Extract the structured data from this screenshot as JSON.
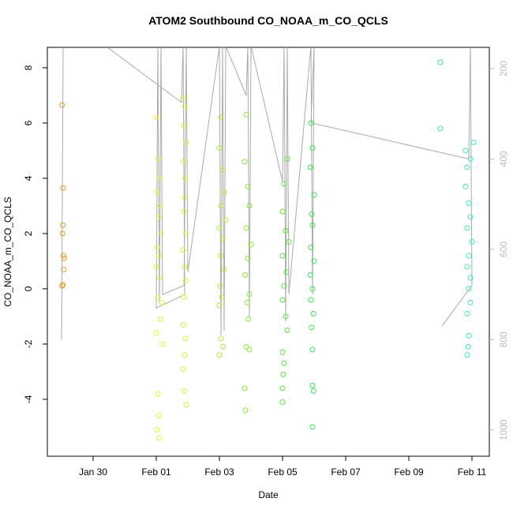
{
  "chart_data": {
    "type": "scatter",
    "title": "ATOM2 Southbound CO_NOAA_m_CO_QCLS",
    "x_label": "Date",
    "y_label": "CO_NOAA_m_CO_QCLS",
    "xlim": [
      28.55,
      42.55
    ],
    "xticks": [
      {
        "value": 30,
        "label": "Jan 30"
      },
      {
        "value": 32,
        "label": "Feb 01"
      },
      {
        "value": 34,
        "label": "Feb 03"
      },
      {
        "value": 36,
        "label": "Feb 05"
      },
      {
        "value": 38,
        "label": "Feb 07"
      },
      {
        "value": 40,
        "label": "Feb 09"
      },
      {
        "value": 42,
        "label": "Feb 11"
      }
    ],
    "ylim": [
      -6.06,
      8.74
    ],
    "yticks": [
      -4,
      -2,
      0,
      2,
      4,
      6,
      8
    ],
    "y2lim": [
      1058,
      153
    ],
    "y2ticks": [
      200,
      400,
      600,
      800,
      1000
    ],
    "series": [
      {
        "color": "#aaaaaa",
        "axis": "y2",
        "line": true,
        "x": [
          29.0,
          29.05,
          30.4,
          32.8,
          32.85,
          32.9,
          32.0,
          32.05,
          32.1,
          32.15,
          32.2,
          32.88,
          32.95,
          33.0,
          34.0,
          34.05,
          34.1,
          34.15,
          34.2,
          34.85,
          34.9,
          34.95,
          35.0,
          36.0,
          36.05,
          36.1,
          36.15,
          36.2,
          36.9,
          36.95,
          37.0,
          36.9,
          41.9,
          41.95,
          42.0,
          41.05
        ],
        "values": [
          800,
          150,
          150,
          275,
          150,
          700,
          730,
          150,
          720,
          150,
          700,
          680,
          150,
          650,
          150,
          790,
          150,
          780,
          150,
          260,
          150,
          750,
          150,
          450,
          150,
          760,
          150,
          700,
          150,
          700,
          150,
          320,
          400,
          150,
          680,
          770
        ]
      },
      {
        "color": "#ee9922",
        "x": [
          29.02,
          29.05,
          29.04,
          29.03,
          29.06,
          29.08,
          29.07,
          29.04,
          29.02
        ],
        "values": [
          6.65,
          3.65,
          2.3,
          2.0,
          1.2,
          1.1,
          0.7,
          0.15,
          0.1
        ]
      },
      {
        "color": "#e6f530",
        "x": [
          32.0,
          32.05,
          32.1,
          32.02,
          32.12,
          32.07,
          32.15,
          32.03,
          32.08,
          32.0,
          32.1,
          32.05,
          32.18,
          32.13,
          32.0,
          32.2,
          32.05,
          32.08,
          32.02,
          32.1
        ],
        "values": [
          6.2,
          4.7,
          4.0,
          3.5,
          3.0,
          2.6,
          2.0,
          1.5,
          1.2,
          0.8,
          0.4,
          -0.3,
          -0.5,
          -1.1,
          -1.6,
          -2.0,
          -3.8,
          -4.6,
          -5.1,
          -5.4
        ]
      },
      {
        "color": "#d8f530",
        "x": [
          32.85,
          32.9,
          32.88,
          32.95,
          32.86,
          32.92,
          32.9,
          32.87,
          32.94,
          32.85,
          32.9,
          32.93,
          32.88,
          32.86,
          32.92,
          32.9,
          32.85,
          32.88,
          32.95
        ],
        "values": [
          6.9,
          6.6,
          5.9,
          5.3,
          4.6,
          4.0,
          3.3,
          2.8,
          2.0,
          1.4,
          0.8,
          0.3,
          -0.3,
          -1.3,
          -1.8,
          -2.4,
          -2.9,
          -3.7,
          -4.2
        ]
      },
      {
        "color": "#aaf030",
        "x": [
          34.05,
          34.0,
          34.1,
          34.15,
          34.05,
          34.2,
          34.0,
          34.1,
          34.05,
          34.15,
          34.02,
          34.08,
          34.0,
          34.05,
          34.12,
          34.0
        ],
        "values": [
          6.2,
          5.1,
          4.3,
          3.5,
          3.0,
          2.5,
          2.2,
          1.8,
          1.2,
          0.7,
          0.1,
          -0.3,
          -0.6,
          -1.8,
          -2.1,
          -2.4
        ]
      },
      {
        "color": "#88f030",
        "x": [
          34.85,
          34.8,
          34.9,
          34.95,
          34.85,
          35.0,
          34.9,
          34.82,
          34.95,
          34.88,
          34.92,
          34.85,
          34.95,
          34.8,
          34.82
        ],
        "values": [
          6.3,
          4.6,
          3.7,
          3.0,
          2.2,
          1.6,
          1.1,
          0.5,
          -0.2,
          -0.5,
          -1.1,
          -2.1,
          -2.2,
          -3.6,
          -4.4
        ]
      },
      {
        "color": "#55f035",
        "x": [
          36.15,
          36.05,
          36.0,
          36.1,
          36.2,
          36.0,
          36.12,
          36.05,
          36.0,
          36.1,
          36.15,
          36.0,
          36.05,
          36.02,
          36.0,
          36.0
        ],
        "values": [
          4.7,
          3.8,
          2.8,
          2.1,
          1.7,
          1.2,
          0.6,
          0.1,
          -0.4,
          -1.0,
          -1.5,
          -2.3,
          -2.7,
          -3.1,
          -3.6,
          -4.1
        ]
      },
      {
        "color": "#33f050",
        "x": [
          36.9,
          36.95,
          36.88,
          37.0,
          36.92,
          36.95,
          36.9,
          37.0,
          36.88,
          36.95,
          36.9,
          36.98,
          36.92,
          36.95,
          36.95,
          36.98,
          36.95
        ],
        "values": [
          6.0,
          5.1,
          4.4,
          3.4,
          2.7,
          2.3,
          1.5,
          1.0,
          0.5,
          0.0,
          -0.4,
          -0.9,
          -1.4,
          -2.2,
          -3.5,
          -3.7,
          -5.0
        ]
      },
      {
        "color": "#33f090",
        "x": [
          41.0,
          41.0
        ],
        "values": [
          8.2,
          5.8
        ]
      },
      {
        "color": "#33f0c0",
        "x": [
          42.05,
          41.8,
          41.95,
          41.85,
          41.8,
          41.9,
          41.95,
          41.85,
          42.0,
          41.9,
          41.85,
          41.95,
          41.9,
          41.95,
          41.85,
          41.9,
          41.88,
          41.85
        ],
        "values": [
          5.3,
          5.0,
          4.7,
          4.4,
          3.7,
          3.1,
          2.6,
          2.2,
          1.7,
          1.2,
          0.8,
          0.4,
          0.0,
          -0.5,
          -0.9,
          -1.7,
          -2.1,
          -2.4
        ]
      }
    ]
  }
}
